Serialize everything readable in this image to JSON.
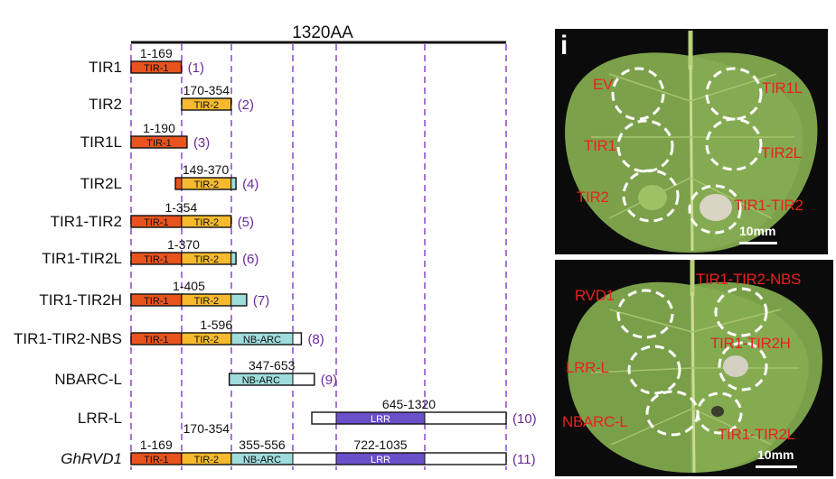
{
  "header": {
    "top_label": "1320AA"
  },
  "rows": [
    {
      "name": "TIR1",
      "range": "1-169",
      "index": "(1)",
      "segments": [
        {
          "label": "TIR-1",
          "kind": "tir1",
          "start": 1,
          "end": 169
        }
      ]
    },
    {
      "name": "TIR2",
      "range": "170-354",
      "index": "(2)",
      "segments": [
        {
          "label": "TIR-2",
          "kind": "tir2",
          "start": 170,
          "end": 354
        }
      ]
    },
    {
      "name": "TIR1L",
      "range": "1-190",
      "index": "(3)",
      "segments": [
        {
          "label": "TIR-1",
          "kind": "tir1",
          "start": 1,
          "end": 190
        }
      ]
    },
    {
      "name": "TIR2L",
      "range": "149-370",
      "index": "(4)",
      "segments": [
        {
          "label": "",
          "kind": "tir1",
          "start": 149,
          "end": 170
        },
        {
          "label": "TIR-2",
          "kind": "tir2",
          "start": 170,
          "end": 354
        },
        {
          "label": "",
          "kind": "nbarc",
          "start": 354,
          "end": 370
        }
      ]
    },
    {
      "name": "TIR1-TIR2",
      "range": "1-354",
      "index": "(5)",
      "segments": [
        {
          "label": "TIR-1",
          "kind": "tir1",
          "start": 1,
          "end": 169
        },
        {
          "label": "TIR-2",
          "kind": "tir2",
          "start": 170,
          "end": 354
        }
      ]
    },
    {
      "name": "TIR1-TIR2L",
      "range": "1-370",
      "index": "(6)",
      "segments": [
        {
          "label": "TIR-1",
          "kind": "tir1",
          "start": 1,
          "end": 169
        },
        {
          "label": "TIR-2",
          "kind": "tir2",
          "start": 170,
          "end": 354
        },
        {
          "label": "",
          "kind": "nbarc",
          "start": 354,
          "end": 370
        }
      ]
    },
    {
      "name": "TIR1-TIR2H",
      "range": "1-405",
      "index": "(7)",
      "segments": [
        {
          "label": "TIR-1",
          "kind": "tir1",
          "start": 1,
          "end": 169
        },
        {
          "label": "TIR-2",
          "kind": "tir2",
          "start": 170,
          "end": 354
        },
        {
          "label": "",
          "kind": "nbarc",
          "start": 354,
          "end": 405
        }
      ]
    },
    {
      "name": "TIR1-TIR2-NBS",
      "range": "1-596",
      "index": "(8)",
      "segments": [
        {
          "label": "TIR-1",
          "kind": "tir1",
          "start": 1,
          "end": 169
        },
        {
          "label": "TIR-2",
          "kind": "tir2",
          "start": 170,
          "end": 354
        },
        {
          "label": "NB-ARC",
          "kind": "nbarc",
          "start": 355,
          "end": 556
        },
        {
          "label": "",
          "kind": "blank",
          "start": 556,
          "end": 596
        }
      ]
    },
    {
      "name": "NBARC-L",
      "range": "347-653",
      "index": "(9)",
      "segments": [
        {
          "label": "NB-ARC",
          "kind": "nbarc",
          "start": 347,
          "end": 556
        },
        {
          "label": "",
          "kind": "blank",
          "start": 556,
          "end": 653
        }
      ]
    },
    {
      "name": "LRR-L",
      "range": "645-1320",
      "index": "(10)",
      "segments": [
        {
          "label": "",
          "kind": "blank",
          "start": 645,
          "end": 722
        },
        {
          "label": "LRR",
          "kind": "lrr",
          "start": 722,
          "end": 1035
        },
        {
          "label": "",
          "kind": "blank",
          "start": 1035,
          "end": 1320
        }
      ]
    },
    {
      "name": "GhRVD1",
      "italic": true,
      "index": "(11)",
      "domain_ranges": [
        "1-169",
        "170-354",
        "355-556",
        "722-1035"
      ],
      "segments": [
        {
          "label": "TIR-1",
          "kind": "tir1",
          "start": 1,
          "end": 169
        },
        {
          "label": "TIR-2",
          "kind": "tir2",
          "start": 170,
          "end": 354
        },
        {
          "label": "NB-ARC",
          "kind": "nbarc",
          "start": 355,
          "end": 556
        },
        {
          "label": "",
          "kind": "blank",
          "start": 556,
          "end": 722
        },
        {
          "label": "LRR",
          "kind": "lrr",
          "start": 722,
          "end": 1035
        },
        {
          "label": "",
          "kind": "blank",
          "start": 1035,
          "end": 1320
        }
      ]
    }
  ],
  "colors": {
    "tir1": "#e8531e",
    "tir2": "#f7b92e",
    "nbarc": "#9fdcdc",
    "lrr": "#6a4fc8",
    "blank": "#ffffff",
    "guide": "#a874d8",
    "index": "#6a2a9c"
  },
  "leaf_panel_top": {
    "letter": "i",
    "labels": {
      "ev": "EV",
      "tir1l": "TIR1L",
      "tir1": "TIR1",
      "tir2l": "TIR2L",
      "tir2": "TIR2",
      "tir1_tir2": "TIR1-TIR2"
    },
    "scale": "10mm"
  },
  "leaf_panel_bottom": {
    "labels": {
      "rvd1": "RVD1",
      "tir1_tir2_nbs": "TIR1-TIR2-NBS",
      "tir1_tir2h": "TIR1-TIR2H",
      "lrr_l": "LRR-L",
      "nbarc_l": "NBARC-L",
      "tir1_tir2l": "TIR1-TIR2L"
    },
    "scale": "10mm"
  }
}
